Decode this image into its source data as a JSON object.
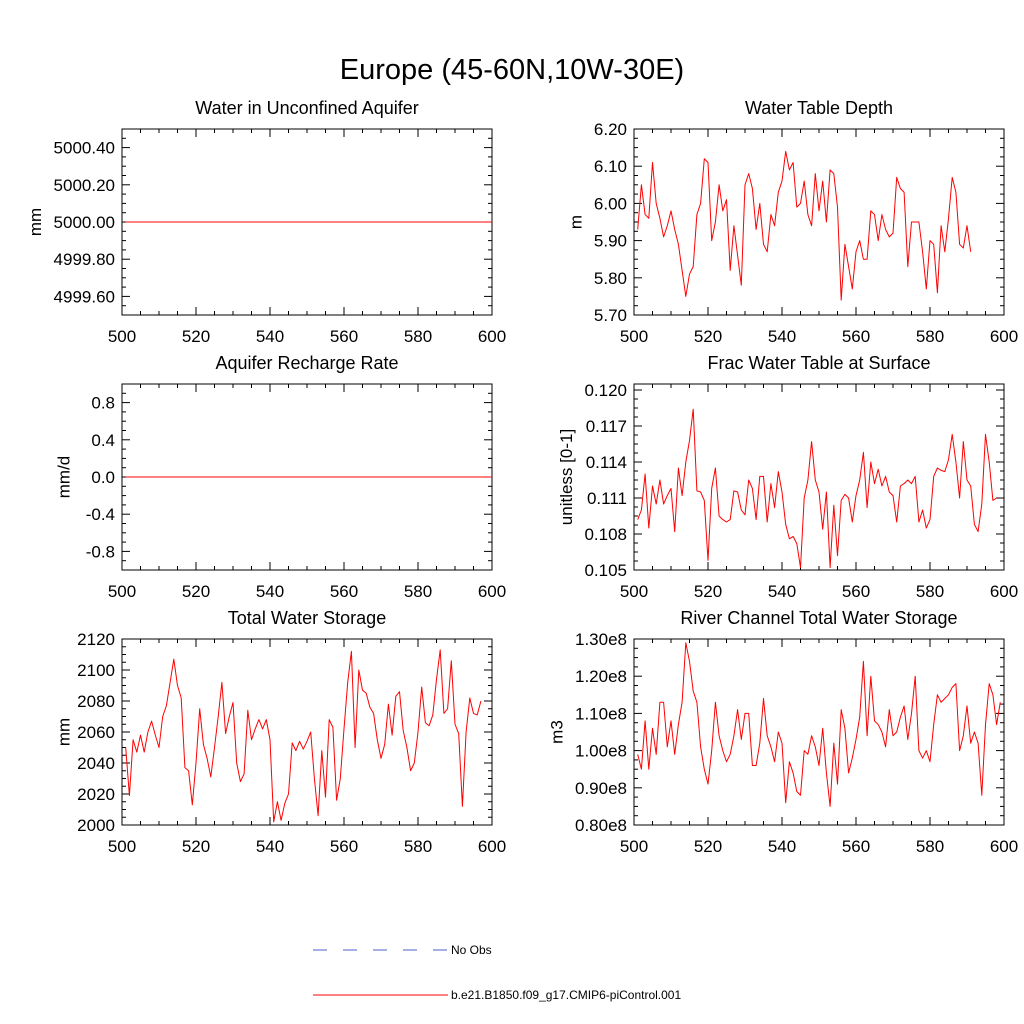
{
  "figure": {
    "title": "Europe (45-60N,10W-30E)"
  },
  "legend": {
    "entries": [
      {
        "label": "No Obs",
        "color": "#4b5fc8",
        "dashed": true
      },
      {
        "label": "b.e21.B1850.f09_g17.CMIP6-piControl.001",
        "color": "#ff0000",
        "dashed": false
      }
    ]
  },
  "chart_data": [
    {
      "id": "aquifer",
      "type": "line",
      "title": "Water in Unconfined Aquifer",
      "ylabel": "mm",
      "xlim": [
        500,
        600
      ],
      "ylim": [
        4999.5,
        5000.5
      ],
      "xticks": [
        500,
        520,
        540,
        560,
        580,
        600
      ],
      "yticks": [
        4999.6,
        4999.8,
        5000.0,
        5000.2,
        5000.4
      ],
      "ytick_labels": [
        "4999.60",
        "4999.80",
        "5000.00",
        "5000.20",
        "5000.40"
      ],
      "series": [
        {
          "name": "b.e21.B1850.f09_g17.CMIP6-piControl.001",
          "color": "#ff0000",
          "x": [
            501,
            600
          ],
          "values": [
            5000.0,
            5000.0
          ]
        }
      ]
    },
    {
      "id": "wtd",
      "type": "line",
      "title": "Water Table Depth",
      "ylabel": "m",
      "xlim": [
        500,
        600
      ],
      "ylim": [
        5.7,
        6.2
      ],
      "xticks": [
        500,
        520,
        540,
        560,
        580,
        600
      ],
      "yticks": [
        5.7,
        5.8,
        5.9,
        6.0,
        6.1,
        6.2
      ],
      "ytick_labels": [
        "5.70",
        "5.80",
        "5.90",
        "6.00",
        "6.10",
        "6.20"
      ],
      "series": [
        {
          "name": "b.e21.B1850.f09_g17.CMIP6-piControl.001",
          "color": "#ff0000",
          "x_start": 501,
          "values": [
            5.93,
            6.05,
            5.97,
            5.96,
            6.11,
            6.0,
            5.96,
            5.91,
            5.94,
            5.98,
            5.93,
            5.89,
            5.82,
            5.75,
            5.81,
            5.83,
            5.97,
            6.0,
            6.12,
            6.11,
            5.9,
            5.95,
            6.05,
            5.98,
            6.01,
            5.82,
            5.94,
            5.86,
            5.78,
            6.05,
            6.08,
            6.04,
            5.93,
            6.0,
            5.89,
            5.87,
            5.97,
            5.94,
            6.03,
            6.06,
            6.14,
            6.09,
            6.11,
            5.99,
            6.0,
            6.06,
            5.97,
            5.94,
            6.08,
            5.98,
            6.06,
            5.95,
            6.09,
            6.08,
            5.99,
            5.74,
            5.89,
            5.83,
            5.77,
            5.87,
            5.9,
            5.85,
            5.85,
            5.98,
            5.97,
            5.9,
            5.97,
            5.93,
            5.91,
            5.92,
            6.07,
            6.04,
            6.03,
            5.83,
            5.95,
            5.95,
            5.95,
            5.87,
            5.77,
            5.9,
            5.89,
            5.76,
            5.94,
            5.87,
            5.96,
            6.07,
            6.03,
            5.89,
            5.88,
            5.94,
            5.87
          ]
        }
      ]
    },
    {
      "id": "recharge",
      "type": "line",
      "title": "Aquifer Recharge Rate",
      "ylabel": "mm/d",
      "xlim": [
        500,
        600
      ],
      "ylim": [
        -1.0,
        1.0
      ],
      "xticks": [
        500,
        520,
        540,
        560,
        580,
        600
      ],
      "yticks": [
        -0.8,
        -0.4,
        0.0,
        0.4,
        0.8
      ],
      "ytick_labels": [
        "-0.8",
        "-0.4",
        "0.0",
        "0.4",
        "0.8"
      ],
      "series": [
        {
          "name": "b.e21.B1850.f09_g17.CMIP6-piControl.001",
          "color": "#ff0000",
          "x": [
            501,
            600
          ],
          "values": [
            0.0,
            0.0
          ]
        }
      ]
    },
    {
      "id": "fracwt",
      "type": "line",
      "title": "Frac Water Table at Surface",
      "ylabel": "unitless [0-1]",
      "xlim": [
        500,
        600
      ],
      "ylim": [
        0.105,
        0.1205
      ],
      "xticks": [
        500,
        520,
        540,
        560,
        580,
        600
      ],
      "yticks": [
        0.105,
        0.108,
        0.111,
        0.114,
        0.117,
        0.12
      ],
      "ytick_labels": [
        "0.105",
        "0.108",
        "0.111",
        "0.114",
        "0.117",
        "0.120"
      ],
      "series": [
        {
          "name": "b.e21.B1850.f09_g17.CMIP6-piControl.001",
          "color": "#ff0000",
          "x_start": 501,
          "values": [
            0.1092,
            0.11,
            0.113,
            0.1085,
            0.112,
            0.1105,
            0.1125,
            0.1105,
            0.1112,
            0.1118,
            0.1082,
            0.1135,
            0.1112,
            0.114,
            0.1158,
            0.1184,
            0.1116,
            0.1115,
            0.1108,
            0.1058,
            0.1118,
            0.1135,
            0.1095,
            0.1092,
            0.109,
            0.1092,
            0.1116,
            0.1115,
            0.11,
            0.1096,
            0.1125,
            0.1118,
            0.1092,
            0.1128,
            0.1128,
            0.109,
            0.1122,
            0.1102,
            0.1132,
            0.1115,
            0.1088,
            0.1076,
            0.1078,
            0.1072,
            0.1052,
            0.111,
            0.1125,
            0.1157,
            0.1125,
            0.1115,
            0.1084,
            0.1115,
            0.1052,
            0.1104,
            0.1062,
            0.1108,
            0.1113,
            0.111,
            0.109,
            0.1112,
            0.1125,
            0.1148,
            0.1102,
            0.114,
            0.1122,
            0.1134,
            0.112,
            0.1128,
            0.1115,
            0.1112,
            0.109,
            0.112,
            0.1122,
            0.1125,
            0.1122,
            0.1128,
            0.109,
            0.11,
            0.1085,
            0.1092,
            0.1128,
            0.1135,
            0.1133,
            0.1132,
            0.1142,
            0.1163,
            0.114,
            0.111,
            0.1157,
            0.1125,
            0.112,
            0.1088,
            0.1082,
            0.1105,
            0.1163,
            0.114,
            0.1108,
            0.111
          ]
        }
      ]
    },
    {
      "id": "tws",
      "type": "line",
      "title": "Total Water Storage",
      "ylabel": "mm",
      "xlim": [
        500,
        600
      ],
      "ylim": [
        2000,
        2120
      ],
      "xticks": [
        500,
        520,
        540,
        560,
        580,
        600
      ],
      "yticks": [
        2000,
        2020,
        2040,
        2060,
        2080,
        2100,
        2120
      ],
      "ytick_labels": [
        "2000",
        "2020",
        "2040",
        "2060",
        "2080",
        "2100",
        "2120"
      ],
      "series": [
        {
          "name": "b.e21.B1850.f09_g17.CMIP6-piControl.001",
          "color": "#ff0000",
          "x_start": 501,
          "values": [
            2050,
            2019,
            2055,
            2047,
            2058,
            2047,
            2060,
            2067,
            2058,
            2050,
            2070,
            2077,
            2092,
            2107,
            2090,
            2082,
            2037,
            2035,
            2013,
            2040,
            2075,
            2052,
            2043,
            2031,
            2050,
            2070,
            2092,
            2059,
            2070,
            2079,
            2040,
            2028,
            2033,
            2074,
            2055,
            2062,
            2068,
            2062,
            2068,
            2055,
            2002,
            2015,
            2003,
            2014,
            2020,
            2053,
            2048,
            2054,
            2049,
            2054,
            2060,
            2030,
            2006,
            2048,
            2018,
            2068,
            2063,
            2016,
            2030,
            2062,
            2092,
            2112,
            2050,
            2100,
            2087,
            2085,
            2076,
            2072,
            2055,
            2043,
            2052,
            2078,
            2058,
            2083,
            2086,
            2061,
            2050,
            2035,
            2040,
            2060,
            2089,
            2066,
            2064,
            2071,
            2094,
            2113,
            2072,
            2075,
            2106,
            2065,
            2059,
            2012,
            2060,
            2082,
            2072,
            2071,
            2080
          ]
        }
      ]
    },
    {
      "id": "river",
      "type": "line",
      "title": "River Channel Total Water Storage",
      "ylabel": "m3",
      "xlim": [
        500,
        600
      ],
      "ylim": [
        80000000,
        130000000
      ],
      "xticks": [
        500,
        520,
        540,
        560,
        580,
        600
      ],
      "yticks": [
        80000000,
        90000000,
        100000000,
        110000000,
        120000000,
        130000000
      ],
      "ytick_labels": [
        "0.80e8",
        "0.90e8",
        "1.00e8",
        "1.10e8",
        "1.20e8",
        "1.30e8"
      ],
      "series": [
        {
          "name": "b.e21.B1850.f09_g17.CMIP6-piControl.001",
          "color": "#ff0000",
          "x_start": 501,
          "values": [
            99000000,
            95000000,
            108000000,
            95000000,
            106000000,
            99000000,
            113000000,
            113000000,
            101000000,
            108000000,
            99000000,
            107000000,
            113000000,
            129000000,
            124000000,
            116000000,
            113000000,
            101000000,
            95000000,
            91000000,
            100000000,
            113000000,
            104000000,
            100000000,
            97000000,
            99000000,
            104000000,
            111000000,
            103000000,
            110000000,
            110000000,
            96000000,
            96000000,
            102000000,
            114000000,
            104000000,
            101000000,
            97000000,
            105000000,
            102000000,
            86000000,
            97000000,
            94000000,
            89000000,
            88000000,
            100000000,
            99000000,
            104000000,
            101000000,
            96000000,
            106000000,
            94000000,
            85000000,
            102000000,
            91000000,
            111000000,
            106000000,
            94000000,
            98000000,
            103000000,
            109000000,
            124000000,
            104000000,
            120000000,
            108000000,
            107000000,
            105000000,
            101000000,
            111000000,
            104000000,
            105000000,
            109000000,
            112000000,
            103000000,
            110000000,
            120000000,
            100000000,
            98000000,
            100000000,
            97000000,
            107000000,
            115000000,
            113000000,
            114000000,
            115000000,
            117000000,
            118000000,
            100000000,
            104000000,
            112000000,
            102000000,
            105000000,
            102000000,
            88000000,
            107000000,
            118000000,
            115000000,
            107000000,
            113000000
          ]
        }
      ]
    }
  ]
}
